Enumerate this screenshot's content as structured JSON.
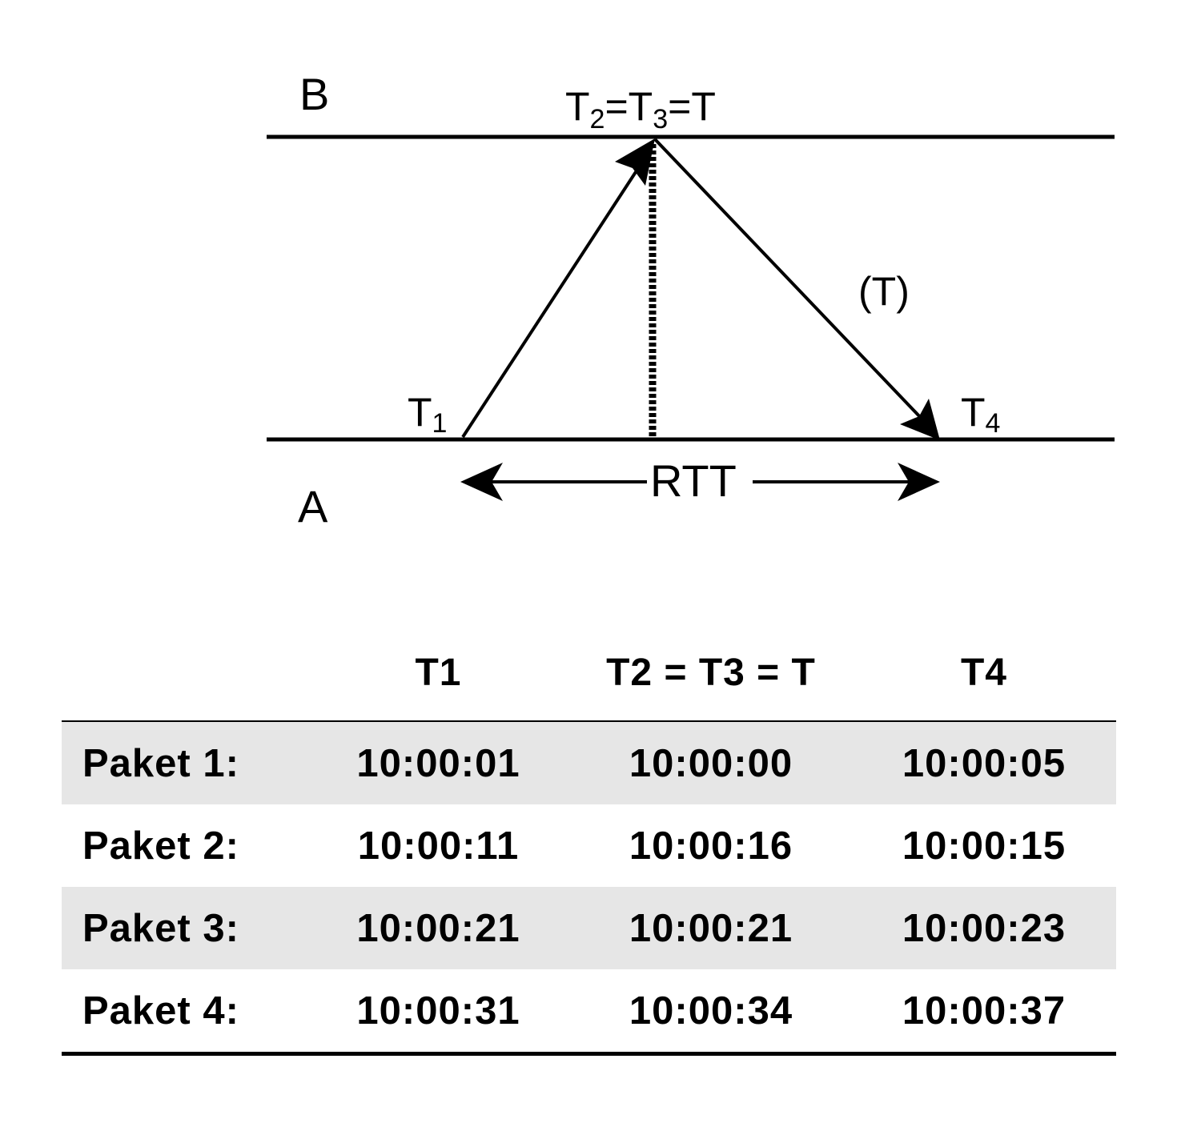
{
  "diagram": {
    "label_b": "B",
    "label_a": "A",
    "label_t23": {
      "t1": "T",
      "s1": "2",
      "mid1": "=T",
      "s2": "3",
      "mid2": "=T"
    },
    "label_t1": {
      "t": "T",
      "s": "1"
    },
    "label_t4": {
      "t": "T",
      "s": "4"
    },
    "label_paren_t": "(T)",
    "label_rtt": "RTT"
  },
  "table": {
    "headers": [
      "",
      "T1",
      "T2 = T3 = T",
      "T4"
    ],
    "rows": [
      {
        "label": "Paket 1:",
        "t1": "10:00:01",
        "t23": "10:00:00",
        "t4": "10:00:05"
      },
      {
        "label": "Paket 2:",
        "t1": "10:00:11",
        "t23": "10:00:16",
        "t4": "10:00:15"
      },
      {
        "label": "Paket 3:",
        "t1": "10:00:21",
        "t23": "10:00:21",
        "t4": "10:00:23"
      },
      {
        "label": "Paket 4:",
        "t1": "10:00:31",
        "t23": "10:00:34",
        "t4": "10:00:37"
      }
    ],
    "shade_color": "#e6e6e6"
  }
}
